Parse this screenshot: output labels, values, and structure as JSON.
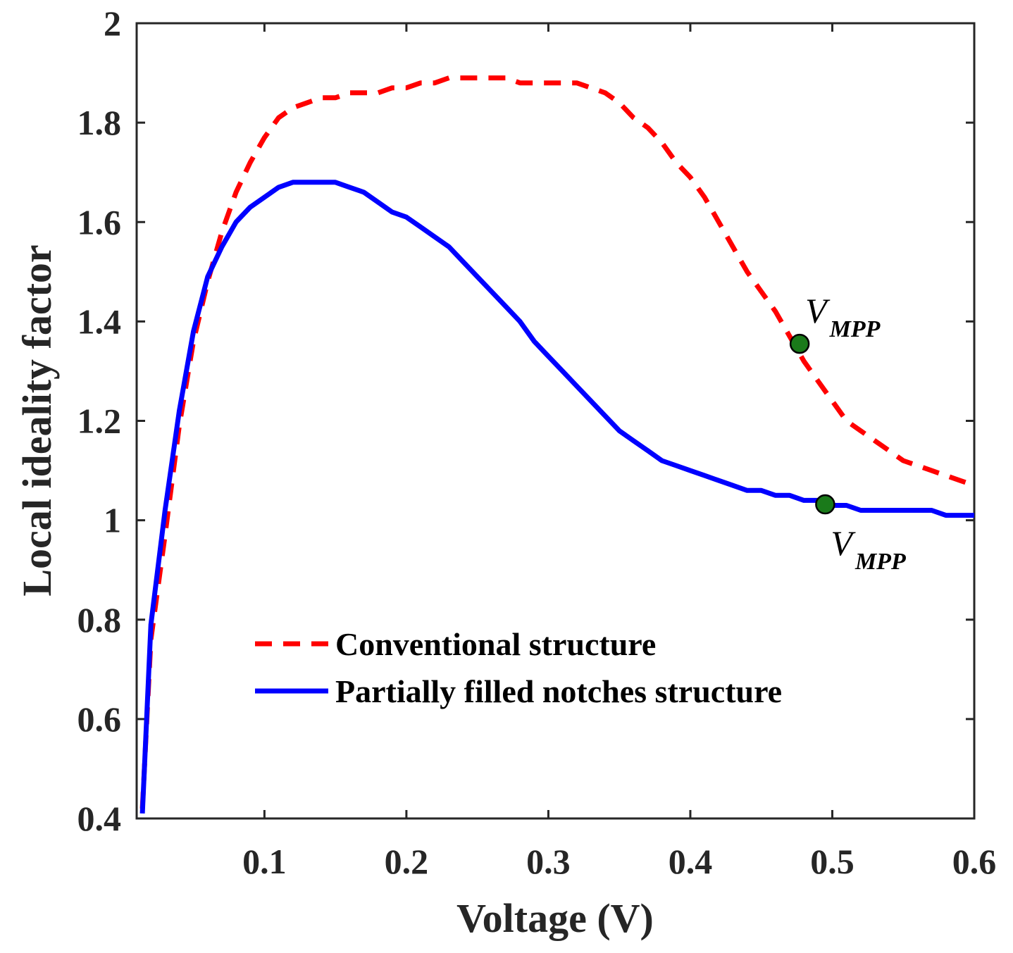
{
  "chart_data": {
    "type": "line",
    "title": "",
    "xlabel": "Voltage (V)",
    "ylabel": "Local ideality factor",
    "xlim": [
      0.01,
      0.6
    ],
    "ylim": [
      0.4,
      2.0
    ],
    "xticks": [
      0.1,
      0.2,
      0.3,
      0.4,
      0.5,
      0.6
    ],
    "xtick_labels": [
      "0.1",
      "0.2",
      "0.3",
      "0.4",
      "0.5",
      "0.6"
    ],
    "yticks": [
      0.4,
      0.6,
      0.8,
      1.0,
      1.2,
      1.4,
      1.6,
      1.8,
      2.0
    ],
    "ytick_labels": [
      "0.4",
      "0.6",
      "0.8",
      "1",
      "1.2",
      "1.4",
      "1.6",
      "1.8",
      "2"
    ],
    "grid": false,
    "legend_position": "lower-center",
    "series": [
      {
        "name": "Conventional structure",
        "color": "#ff0000",
        "style": "dashed",
        "x": [
          0.014,
          0.02,
          0.03,
          0.04,
          0.05,
          0.06,
          0.07,
          0.08,
          0.09,
          0.1,
          0.11,
          0.12,
          0.13,
          0.14,
          0.15,
          0.16,
          0.17,
          0.18,
          0.19,
          0.2,
          0.21,
          0.22,
          0.23,
          0.24,
          0.25,
          0.26,
          0.27,
          0.28,
          0.29,
          0.3,
          0.31,
          0.32,
          0.33,
          0.34,
          0.35,
          0.36,
          0.37,
          0.38,
          0.39,
          0.4,
          0.41,
          0.42,
          0.43,
          0.44,
          0.45,
          0.46,
          0.47,
          0.48,
          0.49,
          0.5,
          0.51,
          0.52,
          0.53,
          0.54,
          0.55,
          0.56,
          0.57,
          0.58,
          0.59,
          0.6
        ],
        "values": [
          0.42,
          0.76,
          0.97,
          1.19,
          1.36,
          1.48,
          1.58,
          1.66,
          1.72,
          1.77,
          1.81,
          1.83,
          1.84,
          1.85,
          1.85,
          1.86,
          1.86,
          1.86,
          1.87,
          1.87,
          1.88,
          1.88,
          1.89,
          1.89,
          1.89,
          1.89,
          1.89,
          1.88,
          1.88,
          1.88,
          1.88,
          1.88,
          1.87,
          1.86,
          1.84,
          1.81,
          1.79,
          1.76,
          1.72,
          1.69,
          1.65,
          1.6,
          1.55,
          1.5,
          1.46,
          1.42,
          1.37,
          1.32,
          1.28,
          1.24,
          1.2,
          1.18,
          1.16,
          1.14,
          1.12,
          1.11,
          1.1,
          1.09,
          1.08,
          1.07
        ]
      },
      {
        "name": "Partially filled notches structure",
        "color": "#0000ff",
        "style": "solid",
        "x": [
          0.014,
          0.02,
          0.03,
          0.04,
          0.05,
          0.06,
          0.07,
          0.08,
          0.09,
          0.1,
          0.11,
          0.12,
          0.13,
          0.14,
          0.15,
          0.16,
          0.17,
          0.18,
          0.19,
          0.2,
          0.21,
          0.22,
          0.23,
          0.24,
          0.25,
          0.26,
          0.27,
          0.28,
          0.29,
          0.3,
          0.31,
          0.32,
          0.33,
          0.34,
          0.35,
          0.36,
          0.37,
          0.38,
          0.39,
          0.4,
          0.41,
          0.42,
          0.43,
          0.44,
          0.45,
          0.46,
          0.47,
          0.48,
          0.49,
          0.5,
          0.51,
          0.52,
          0.53,
          0.54,
          0.55,
          0.56,
          0.57,
          0.58,
          0.59,
          0.6
        ],
        "values": [
          0.41,
          0.79,
          1.02,
          1.22,
          1.38,
          1.49,
          1.55,
          1.6,
          1.63,
          1.65,
          1.67,
          1.68,
          1.68,
          1.68,
          1.68,
          1.67,
          1.66,
          1.64,
          1.62,
          1.61,
          1.59,
          1.57,
          1.55,
          1.52,
          1.49,
          1.46,
          1.43,
          1.4,
          1.36,
          1.33,
          1.3,
          1.27,
          1.24,
          1.21,
          1.18,
          1.16,
          1.14,
          1.12,
          1.11,
          1.1,
          1.09,
          1.08,
          1.07,
          1.06,
          1.06,
          1.05,
          1.05,
          1.04,
          1.04,
          1.03,
          1.03,
          1.02,
          1.02,
          1.02,
          1.02,
          1.02,
          1.02,
          1.01,
          1.01,
          1.01
        ]
      }
    ],
    "annotations": [
      {
        "label": "V",
        "subscript": "MPP",
        "series": "Conventional structure",
        "x": 0.477,
        "y": 1.355,
        "label_side": "above"
      },
      {
        "label": "V",
        "subscript": "MPP",
        "series": "Partially filled notches structure",
        "x": 0.495,
        "y": 1.032,
        "label_side": "below"
      }
    ],
    "marker_color": "#1a7a1a"
  }
}
